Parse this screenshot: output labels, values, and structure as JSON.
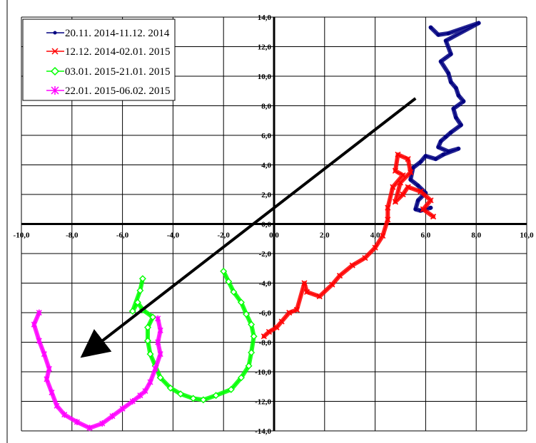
{
  "chart_data": {
    "type": "line",
    "title": "",
    "xlabel": "",
    "ylabel": "",
    "xlim": [
      -10,
      10
    ],
    "ylim": [
      -14,
      14
    ],
    "x_ticks": [
      -10,
      -8,
      -6,
      -4,
      -2,
      0,
      2,
      4,
      6,
      8,
      10
    ],
    "y_ticks": [
      -14,
      -12,
      -10,
      -8,
      -6,
      -4,
      -2,
      0,
      2,
      4,
      6,
      8,
      10,
      12,
      14
    ],
    "x_tick_labels": [
      "-10,0",
      "-8,0",
      "-6,0",
      "-4,0",
      "-2,0",
      "0,0",
      "2,0",
      "4,0",
      "6,0",
      "8,0",
      "10,0"
    ],
    "y_tick_labels": [
      "-14,0",
      "-12,0",
      "-10,0",
      "-8,0",
      "-6,0",
      "-4,0",
      "-2,0",
      "0,0",
      "2,0",
      "4,0",
      "6,0",
      "8,0",
      "10,0",
      "12,0",
      "14,0"
    ],
    "grid": true,
    "legend_position": "top-left",
    "series": [
      {
        "name": "20.11. 2014-11.12. 2014",
        "color": "#000080",
        "marker": "dot",
        "x": [
          6.2,
          6.5,
          6.9,
          8.1,
          6.8,
          7.0,
          6.6,
          6.9,
          7.0,
          7.2,
          7.3,
          7.5,
          7.1,
          7.2,
          7.4,
          7.0,
          6.8,
          6.6,
          6.5,
          6.9,
          7.3,
          6.7,
          6.4,
          6.0,
          5.8,
          5.5,
          5.4,
          5.7,
          6.0,
          5.7,
          5.6,
          5.8,
          6.2
        ],
        "y": [
          13.3,
          12.8,
          12.9,
          13.6,
          12.4,
          11.5,
          11.0,
          10.2,
          9.6,
          9.2,
          8.7,
          8.3,
          7.8,
          7.2,
          6.7,
          6.2,
          5.9,
          5.6,
          5.2,
          4.9,
          5.1,
          4.7,
          4.4,
          4.6,
          4.2,
          3.8,
          3.0,
          2.6,
          2.1,
          1.6,
          1.0,
          0.9,
          1.1
        ]
      },
      {
        "name": "12.12. 2014-02.01. 2015",
        "color": "#ff0000",
        "marker": "x",
        "x": [
          6.3,
          5.9,
          6.2,
          5.8,
          5.3,
          5.1,
          4.8,
          5.0,
          5.4,
          5.3,
          4.9,
          4.8,
          5.1,
          4.7,
          4.5,
          4.5,
          4.3,
          4.0,
          3.6,
          3.1,
          2.6,
          2.3,
          1.8,
          1.3,
          1.2,
          0.9,
          0.6,
          0.3,
          0.1,
          -0.2,
          -0.4
        ],
        "y": [
          0.5,
          1.0,
          1.6,
          2.2,
          2.5,
          2.0,
          1.5,
          2.8,
          3.5,
          4.4,
          4.7,
          3.6,
          3.3,
          2.5,
          1.1,
          0.3,
          -0.8,
          -1.6,
          -2.3,
          -2.8,
          -3.5,
          -4.1,
          -4.9,
          -4.6,
          -4.0,
          -5.8,
          -6.0,
          -6.6,
          -7.0,
          -7.3,
          -7.6
        ]
      },
      {
        "name": "03.01. 2015-21.01. 2015",
        "color": "#00ff00",
        "marker": "diamond",
        "x": [
          -2.0,
          -1.8,
          -1.6,
          -1.3,
          -1.1,
          -0.9,
          -0.8,
          -0.9,
          -1.0,
          -1.3,
          -1.7,
          -2.3,
          -2.8,
          -3.2,
          -3.7,
          -4.1,
          -4.5,
          -4.7,
          -4.9,
          -5.0,
          -5.0,
          -4.8,
          -5.2,
          -5.4,
          -5.6,
          -5.3,
          -5.2
        ],
        "y": [
          -3.2,
          -3.9,
          -4.6,
          -5.3,
          -6.1,
          -6.8,
          -7.6,
          -8.7,
          -9.6,
          -10.4,
          -11.2,
          -11.6,
          -11.9,
          -11.8,
          -11.5,
          -11.1,
          -10.4,
          -9.6,
          -8.8,
          -7.9,
          -7.0,
          -6.3,
          -5.8,
          -5.3,
          -5.9,
          -4.5,
          -3.7
        ]
      },
      {
        "name": "22.01. 2015-06.02. 2015",
        "color": "#ff00ff",
        "marker": "asterisk",
        "x": [
          -4.6,
          -4.5,
          -4.6,
          -4.5,
          -4.7,
          -4.9,
          -5.1,
          -5.3,
          -5.6,
          -6.0,
          -6.4,
          -6.8,
          -7.3,
          -7.8,
          -8.3,
          -8.6,
          -8.8,
          -9.0,
          -8.9,
          -9.1,
          -9.3,
          -9.5,
          -9.3
        ],
        "y": [
          -6.4,
          -7.2,
          -8.0,
          -8.8,
          -9.8,
          -10.7,
          -11.3,
          -11.6,
          -12.0,
          -12.5,
          -13.0,
          -13.5,
          -13.8,
          -13.4,
          -12.9,
          -12.3,
          -11.4,
          -10.5,
          -9.8,
          -8.8,
          -7.9,
          -6.8,
          -6.0
        ]
      }
    ],
    "annotations": [
      {
        "type": "arrow",
        "color": "#000000",
        "from": [
          5.6,
          8.5
        ],
        "to": [
          -7.4,
          -8.7
        ]
      }
    ]
  }
}
